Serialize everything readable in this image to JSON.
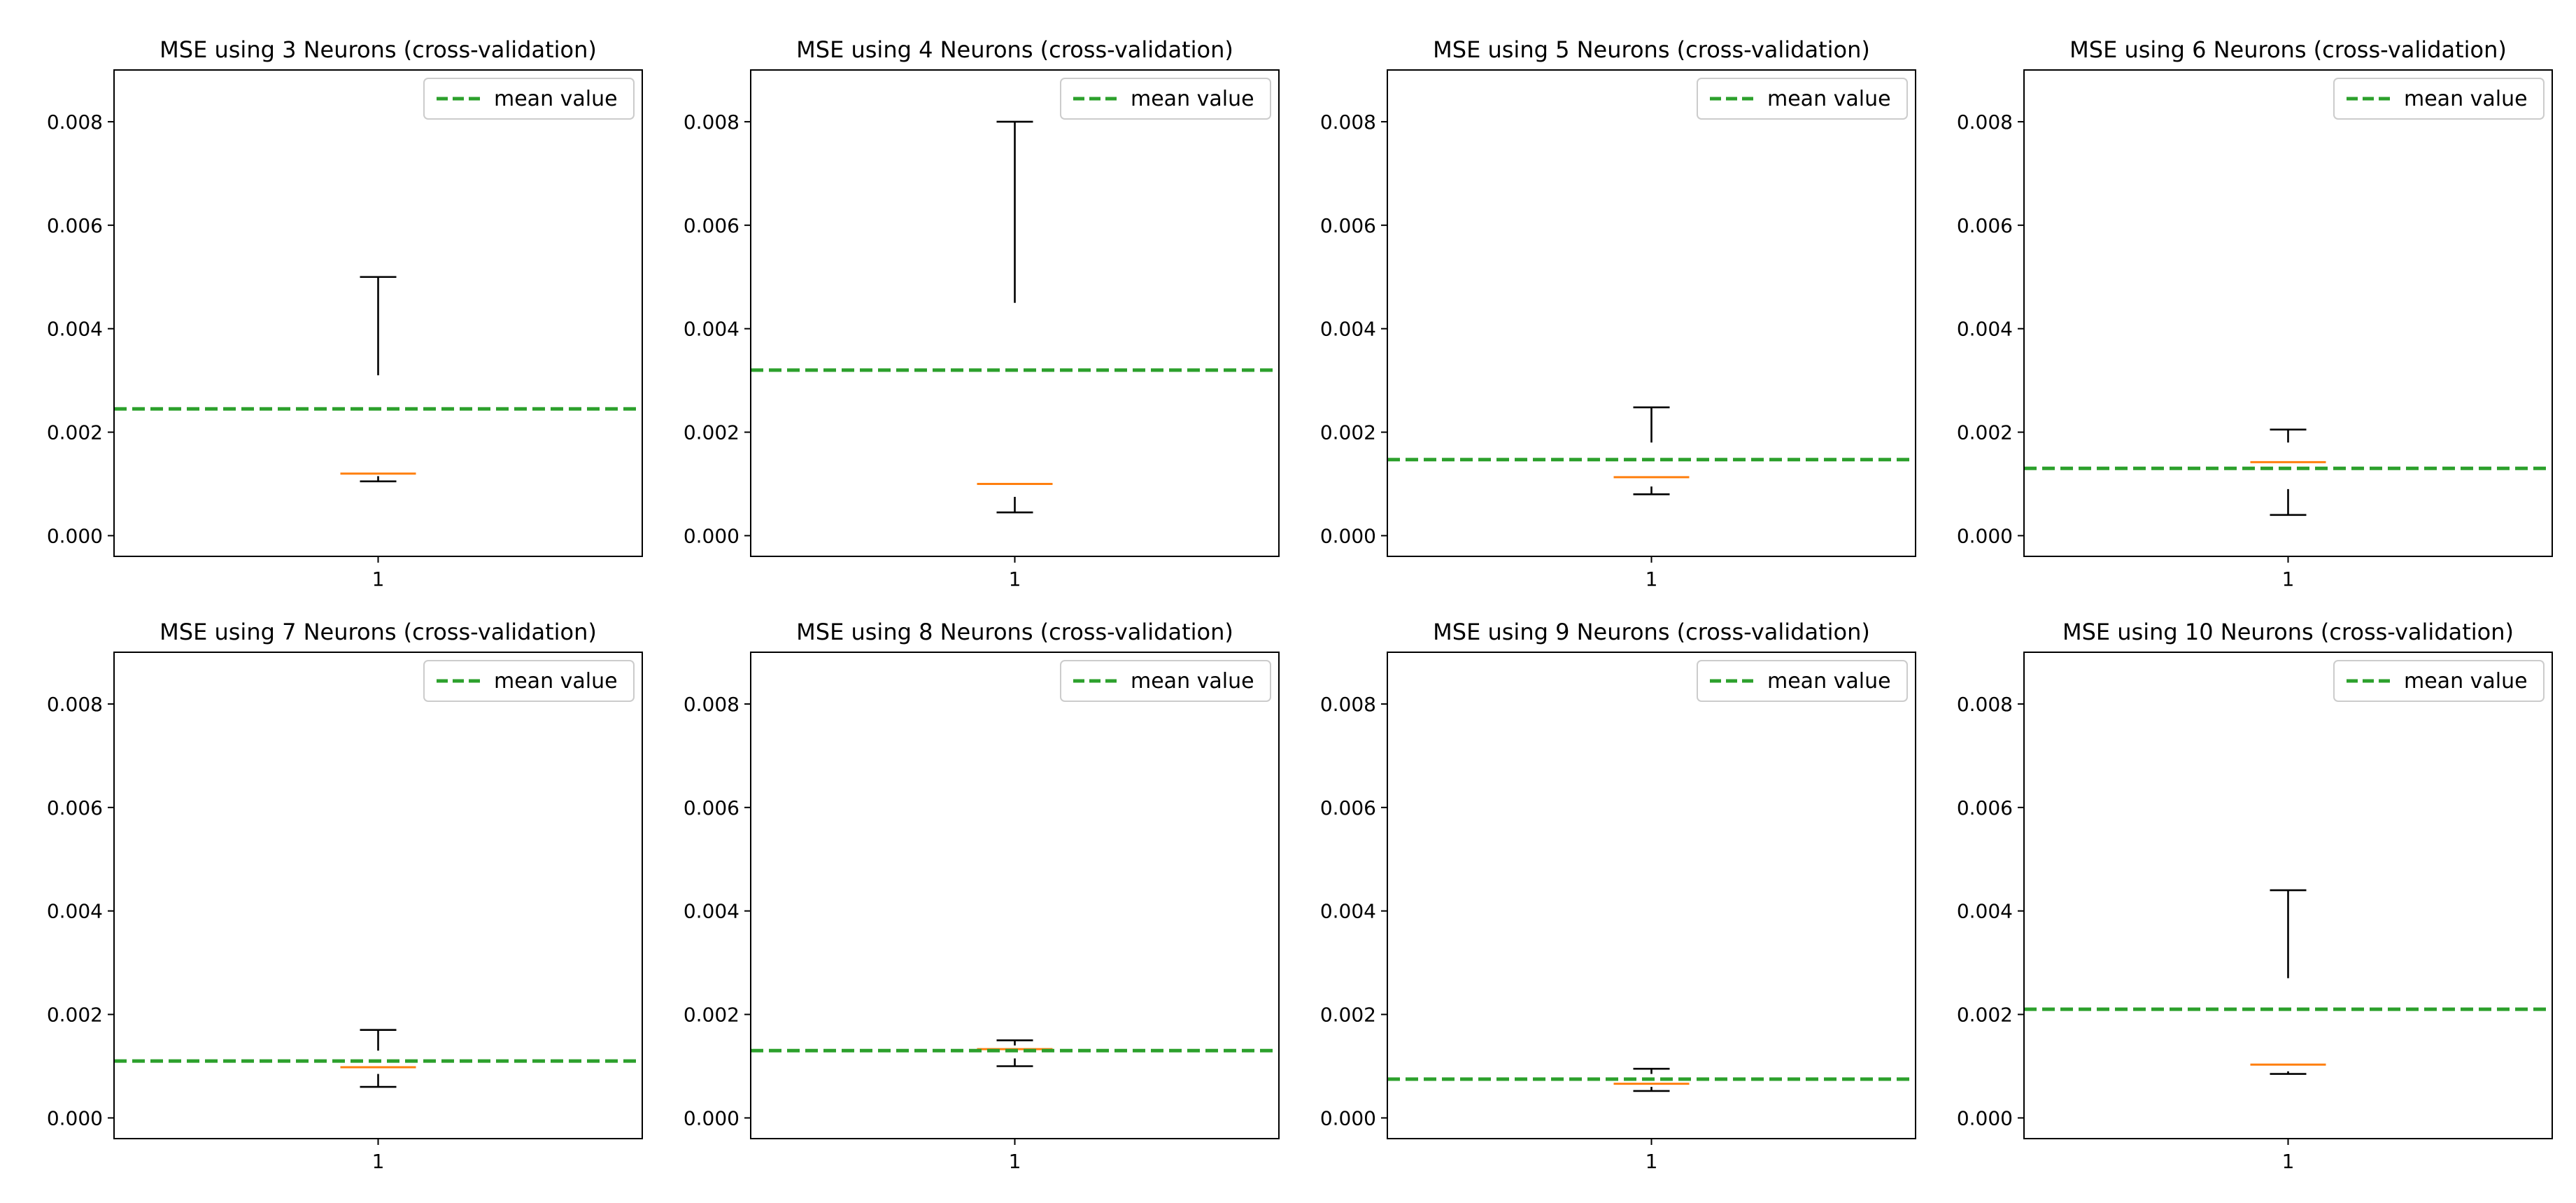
{
  "chart_data": [
    {
      "type": "box",
      "title": "MSE using 3 Neurons (cross-validation)",
      "category": "1",
      "ylim": [
        -0.0004,
        0.009
      ],
      "yticks": [
        "0.000",
        "0.002",
        "0.004",
        "0.006",
        "0.008"
      ],
      "box": {
        "whisker_low": 0.00105,
        "q1": 0.00115,
        "median": 0.0012,
        "q3": 0.0031,
        "whisker_high": 0.005
      },
      "mean": 0.00245,
      "legend": {
        "label": "mean value",
        "location": "upper right"
      }
    },
    {
      "type": "box",
      "title": "MSE using 4 Neurons (cross-validation)",
      "category": "1",
      "ylim": [
        -0.0004,
        0.009
      ],
      "yticks": [
        "0.000",
        "0.002",
        "0.004",
        "0.006",
        "0.008"
      ],
      "box": {
        "whisker_low": 0.00045,
        "q1": 0.00075,
        "median": 0.001,
        "q3": 0.0045,
        "whisker_high": 0.008
      },
      "mean": 0.0032,
      "legend": {
        "label": "mean value",
        "location": "upper right"
      }
    },
    {
      "type": "box",
      "title": "MSE using 5 Neurons (cross-validation)",
      "category": "1",
      "ylim": [
        -0.0004,
        0.009
      ],
      "yticks": [
        "0.000",
        "0.002",
        "0.004",
        "0.006",
        "0.008"
      ],
      "box": {
        "whisker_low": 0.0008,
        "q1": 0.00095,
        "median": 0.00113,
        "q3": 0.0018,
        "whisker_high": 0.00248
      },
      "mean": 0.00147,
      "legend": {
        "label": "mean value",
        "location": "upper right"
      }
    },
    {
      "type": "box",
      "title": "MSE using 6 Neurons (cross-validation)",
      "category": "1",
      "ylim": [
        -0.0004,
        0.009
      ],
      "yticks": [
        "0.000",
        "0.002",
        "0.004",
        "0.006",
        "0.008"
      ],
      "box": {
        "whisker_low": 0.0004,
        "q1": 0.0009,
        "median": 0.00142,
        "q3": 0.0018,
        "whisker_high": 0.00205
      },
      "mean": 0.0013,
      "legend": {
        "label": "mean value",
        "location": "upper right"
      }
    },
    {
      "type": "box",
      "title": "MSE using 7 Neurons (cross-validation)",
      "category": "1",
      "ylim": [
        -0.0004,
        0.009
      ],
      "yticks": [
        "0.000",
        "0.002",
        "0.004",
        "0.006",
        "0.008"
      ],
      "box": {
        "whisker_low": 0.0006,
        "q1": 0.00085,
        "median": 0.00098,
        "q3": 0.0013,
        "whisker_high": 0.0017
      },
      "mean": 0.0011,
      "legend": {
        "label": "mean value",
        "location": "upper right"
      }
    },
    {
      "type": "box",
      "title": "MSE using 8 Neurons (cross-validation)",
      "category": "1",
      "ylim": [
        -0.0004,
        0.009
      ],
      "yticks": [
        "0.000",
        "0.002",
        "0.004",
        "0.006",
        "0.008"
      ],
      "box": {
        "whisker_low": 0.001,
        "q1": 0.00115,
        "median": 0.00133,
        "q3": 0.0014,
        "whisker_high": 0.0015
      },
      "mean": 0.0013,
      "legend": {
        "label": "mean value",
        "location": "upper right"
      }
    },
    {
      "type": "box",
      "title": "MSE using 9 Neurons (cross-validation)",
      "category": "1",
      "ylim": [
        -0.0004,
        0.009
      ],
      "yticks": [
        "0.000",
        "0.002",
        "0.004",
        "0.006",
        "0.008"
      ],
      "box": {
        "whisker_low": 0.00052,
        "q1": 0.0006,
        "median": 0.00066,
        "q3": 0.00085,
        "whisker_high": 0.00095
      },
      "mean": 0.00075,
      "legend": {
        "label": "mean value",
        "location": "upper right"
      }
    },
    {
      "type": "box",
      "title": "MSE using 10 Neurons (cross-validation)",
      "category": "1",
      "ylim": [
        -0.0004,
        0.009
      ],
      "yticks": [
        "0.000",
        "0.002",
        "0.004",
        "0.006",
        "0.008"
      ],
      "box": {
        "whisker_low": 0.00085,
        "q1": 0.0009,
        "median": 0.00103,
        "q3": 0.0027,
        "whisker_high": 0.0044
      },
      "mean": 0.0021,
      "legend": {
        "label": "mean value",
        "location": "upper right"
      }
    }
  ],
  "colors": {
    "mean_line": "#2ca02c",
    "median": "#ff7f0e",
    "whisker": "#000000",
    "axes": "#000000"
  }
}
